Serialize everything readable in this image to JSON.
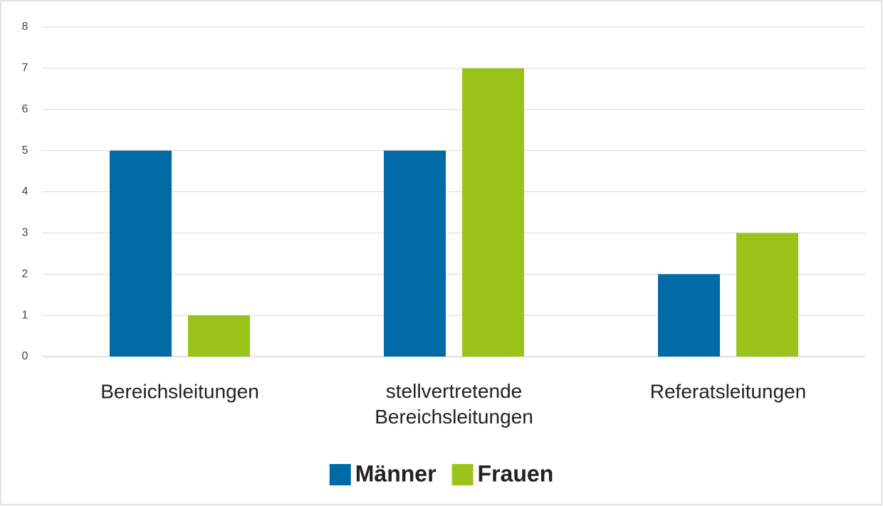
{
  "chart_data": {
    "type": "bar",
    "categories": [
      "Bereichsleitungen",
      "stellvertretende Bereichsleitungen",
      "Referatsleitungen"
    ],
    "series": [
      {
        "name": "Männer",
        "color": "#006aa6",
        "values": [
          5,
          5,
          2
        ]
      },
      {
        "name": "Frauen",
        "color": "#9bc31a",
        "values": [
          1,
          7,
          3
        ]
      }
    ],
    "ylim": [
      0,
      8
    ],
    "yticks": [
      0,
      1,
      2,
      3,
      4,
      5,
      6,
      7,
      8
    ],
    "grid": true,
    "legend": "bottom"
  }
}
